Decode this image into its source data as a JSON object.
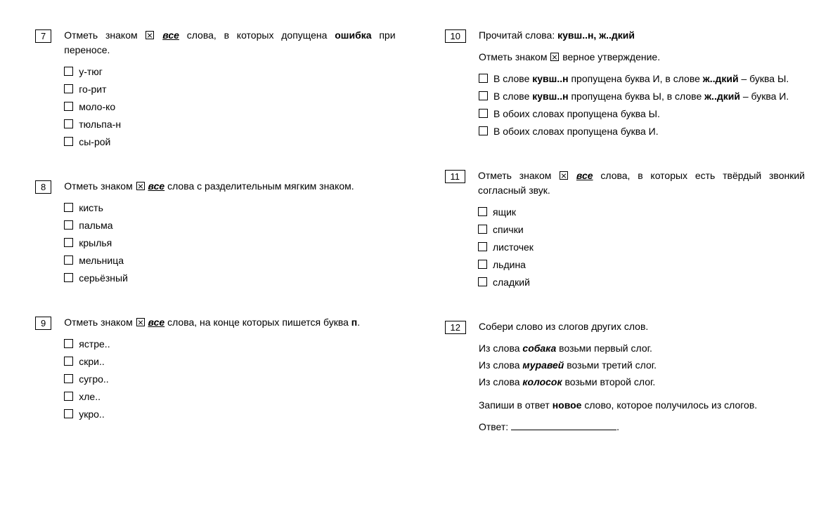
{
  "left": [
    {
      "num": "7",
      "prompt_html": "Отметь знаком <span class=\"xbox\"></span> <b><i><span class=\"u\">все</span></i></b> слова, в которых допущена <b>ошибка</b> при переносе.",
      "options": [
        "у-тюг",
        "го-рит",
        "моло-ко",
        "тюльпа-н",
        "сы-рой"
      ]
    },
    {
      "num": "8",
      "prompt_html": "Отметь знаком <span class=\"xbox\"></span> <b><i><span class=\"u\">все</span></i></b> слова с разделительным мягким знаком.",
      "options": [
        "кисть",
        "пальма",
        "крылья",
        "мельница",
        "серьёзный"
      ]
    },
    {
      "num": "9",
      "prompt_html": "Отметь знаком <span class=\"xbox\"></span> <b><i><span class=\"u\">все</span></i></b> слова, на конце которых пишется буква <b>п</b>.",
      "options": [
        "ястре..",
        "скри..",
        "сугро..",
        "хле..",
        "укро.."
      ]
    }
  ],
  "right": [
    {
      "num": "10",
      "pre_prompt_html": "Прочитай слова: <b>кувш..н, ж..дкий</b>",
      "prompt_html": "Отметь знаком <span class=\"xbox\"></span> верное утверждение.",
      "options_html": [
        "В слове <b>кувш..н</b> пропущена буква И, в слове <b>ж..дкий</b> – буква Ы.",
        "В слове <b>кувш..н</b> пропущена буква Ы, в слове <b>ж..дкий</b> – буква И.",
        "В обоих словах пропущена буква Ы.",
        "В обоих словах пропущена буква И."
      ]
    },
    {
      "num": "11",
      "prompt_html": "Отметь знаком <span class=\"xbox\"></span> <b><i><span class=\"u\">все</span></i></b> слова, в которых есть твёрдый звонкий согласный звук.",
      "options": [
        "ящик",
        "спички",
        "листочек",
        "льдина",
        "сладкий"
      ]
    },
    {
      "num": "12",
      "prompt_html": "Собери слово из слогов других слов.",
      "instructions_html": [
        "Из слова <b><i>собака</i></b> возьми первый слог.",
        "Из слова <b><i>муравей</i></b> возьми третий слог.",
        "Из слова <b><i>колосок</i></b> возьми второй слог."
      ],
      "final_html": "Запиши в ответ <b>новое</b> слово, которое получилось из слогов.",
      "answer_label": "Ответ:"
    }
  ]
}
